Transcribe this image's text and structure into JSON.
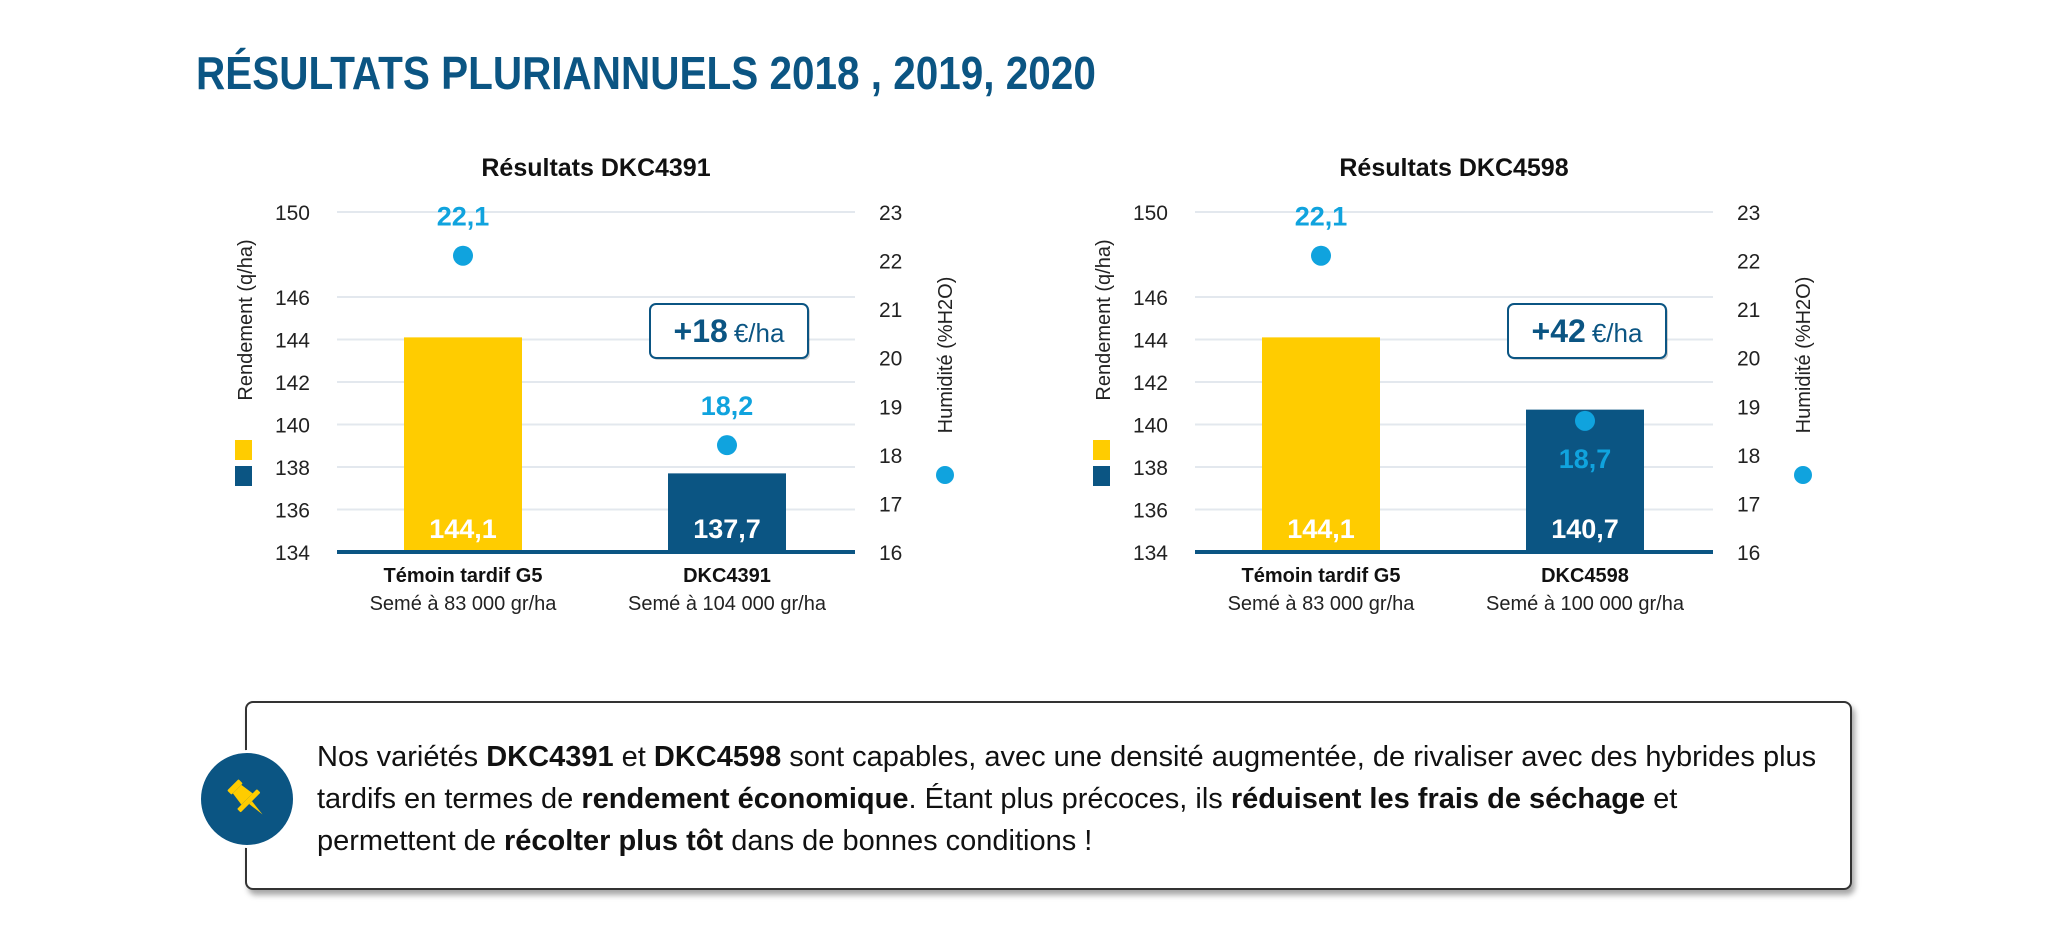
{
  "title": "RÉSULTATS PLURIANNUELS 2018 , 2019, 2020",
  "chart_data": [
    {
      "type": "bar",
      "title": "Résultats DKC4391",
      "ylabel": "Rendement (q/ha)",
      "y2label": "Humidité (%H2O)",
      "ylim": [
        134,
        150
      ],
      "yticks": [
        134,
        136,
        138,
        140,
        142,
        144,
        146,
        150
      ],
      "y2lim": [
        16,
        23
      ],
      "y2ticks": [
        16,
        17,
        18,
        19,
        20,
        21,
        22,
        23
      ],
      "categories": [
        {
          "name": "Témoin tardif G5",
          "sub": "Semé à 83 000 gr/ha"
        },
        {
          "name": "DKC4391",
          "sub": "Semé à 104 000 gr/ha"
        }
      ],
      "series": [
        {
          "name": "Rendement",
          "axis": "left",
          "values": [
            144.1,
            137.7
          ],
          "labels": [
            "144,1",
            "137,7"
          ],
          "colors": [
            "#ffcc00",
            "#0b5583"
          ]
        },
        {
          "name": "Humidité",
          "axis": "right",
          "values": [
            22.1,
            18.2
          ],
          "labels": [
            "22,1",
            "18,2"
          ],
          "color": "#10a3de"
        }
      ],
      "badge": {
        "value": "+18",
        "unit": "€/ha"
      },
      "grid": true
    },
    {
      "type": "bar",
      "title": "Résultats DKC4598",
      "ylabel": "Rendement (q/ha)",
      "y2label": "Humidité (%H2O)",
      "ylim": [
        134,
        150
      ],
      "yticks": [
        134,
        136,
        138,
        140,
        142,
        144,
        146,
        150
      ],
      "y2lim": [
        16,
        23
      ],
      "y2ticks": [
        16,
        17,
        18,
        19,
        20,
        21,
        22,
        23
      ],
      "categories": [
        {
          "name": "Témoin tardif G5",
          "sub": "Semé à 83 000 gr/ha"
        },
        {
          "name": "DKC4598",
          "sub": "Semé à 100 000 gr/ha"
        }
      ],
      "series": [
        {
          "name": "Rendement",
          "axis": "left",
          "values": [
            144.1,
            140.7
          ],
          "labels": [
            "144,1",
            "140,7"
          ],
          "colors": [
            "#ffcc00",
            "#0b5583"
          ]
        },
        {
          "name": "Humidité",
          "axis": "right",
          "values": [
            22.1,
            18.7
          ],
          "labels": [
            "22,1",
            "18,7"
          ],
          "color": "#10a3de"
        }
      ],
      "badge": {
        "value": "+42",
        "unit": "€/ha"
      },
      "grid": true
    }
  ],
  "callout": {
    "icon": "pushpin-icon",
    "parts": [
      {
        "t": "Nos variétés ",
        "b": false
      },
      {
        "t": "DKC4391",
        "b": true
      },
      {
        "t": " et ",
        "b": false
      },
      {
        "t": "DKC4598",
        "b": true
      },
      {
        "t": " sont capables, avec une densité augmentée, de rivaliser avec des hybrides plus tardifs en termes de ",
        "b": false
      },
      {
        "t": "rendement économique",
        "b": true
      },
      {
        "t": ". Étant plus précoces, ils ",
        "b": false
      },
      {
        "t": "réduisent les frais de séchage",
        "b": true
      },
      {
        "t": " et permettent de ",
        "b": false
      },
      {
        "t": "récolter plus tôt",
        "b": true
      },
      {
        "t": " dans de bonnes conditions !",
        "b": false
      }
    ]
  }
}
